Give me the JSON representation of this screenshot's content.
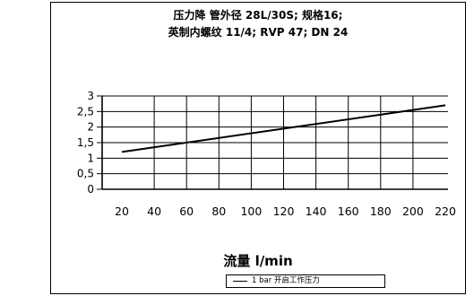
{
  "chart_data": {
    "type": "line",
    "title_lines": [
      "压力降 管外径 28L/30S; 规格16;",
      "英制内螺纹 11/4; RVP 47; DN 24"
    ],
    "xlabel": "流量 l/min",
    "ylabel": "",
    "x_ticks": [
      20,
      40,
      60,
      80,
      100,
      120,
      140,
      160,
      180,
      200,
      220
    ],
    "y_ticks": [
      0,
      0.5,
      1,
      1.5,
      2,
      2.5,
      3
    ],
    "y_tick_labels": [
      "0",
      "0,5",
      "1",
      "1,5",
      "2",
      "2,5",
      "3"
    ],
    "xlim": [
      20,
      220
    ],
    "ylim": [
      0,
      3
    ],
    "grid": true,
    "legend_position": "bottom-right",
    "series": [
      {
        "name": "1 bar 开启工作压力",
        "x": [
          20,
          220
        ],
        "y": [
          1.2,
          2.7
        ]
      }
    ]
  }
}
